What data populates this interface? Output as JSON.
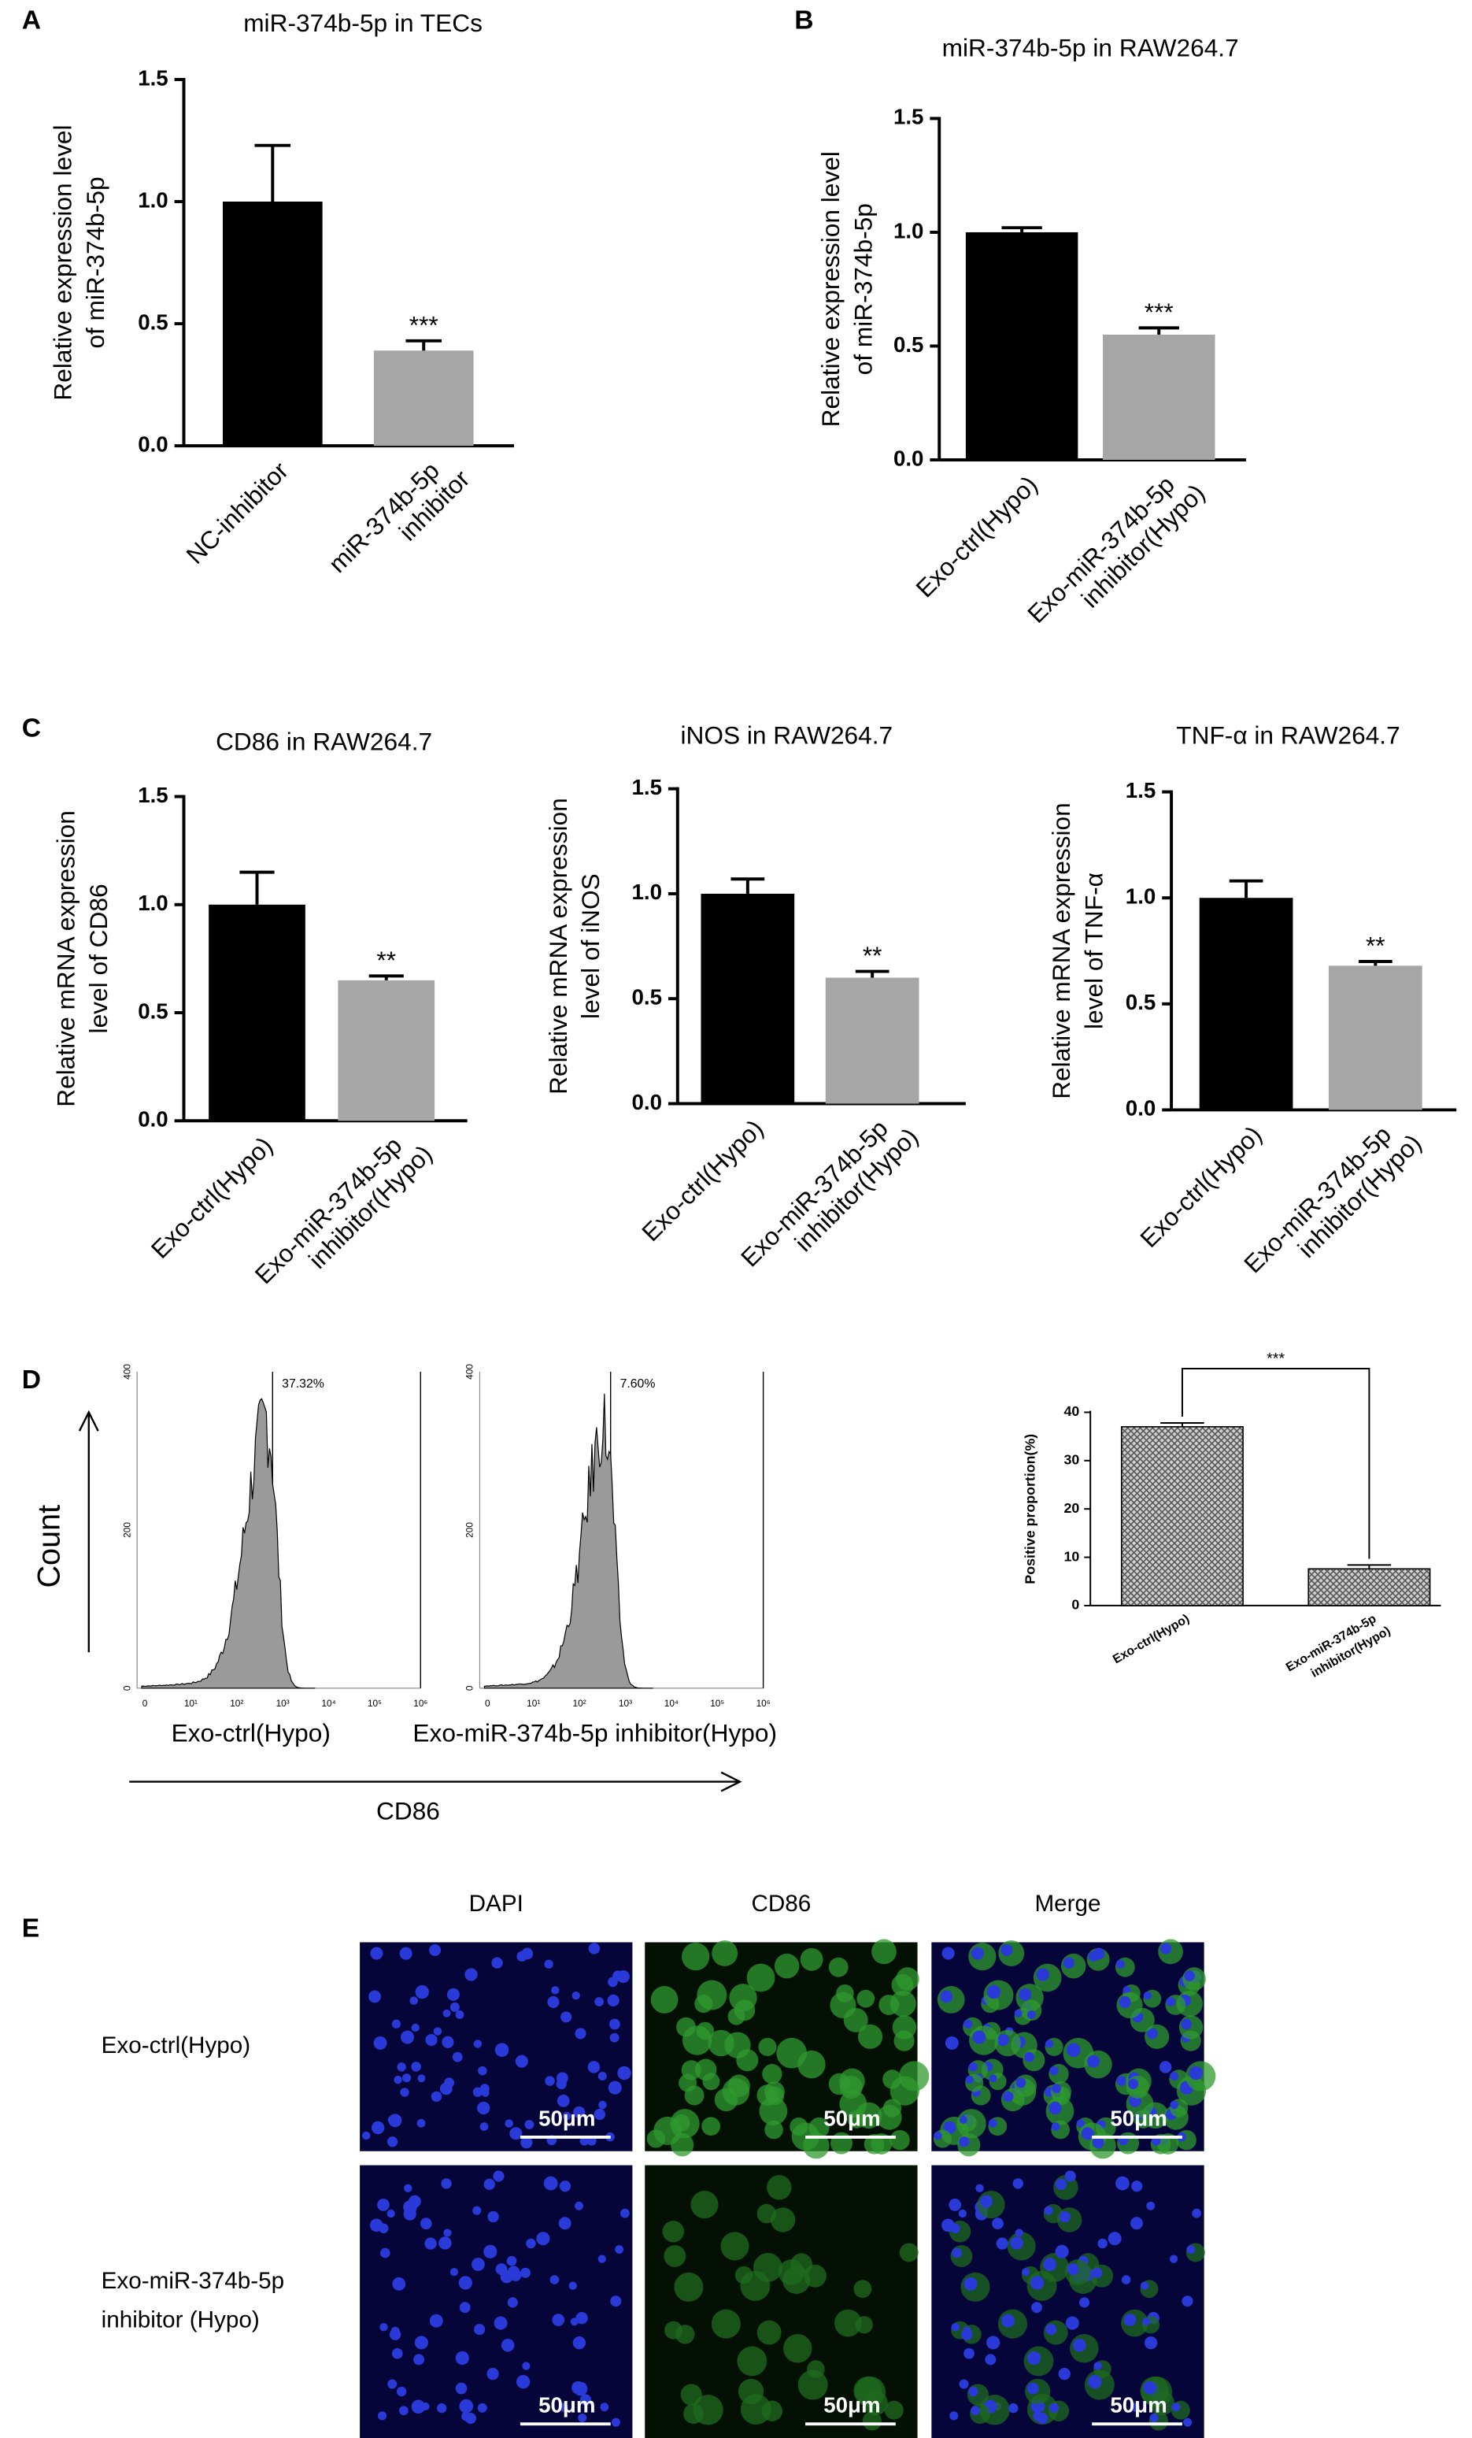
{
  "panels": [
    "A",
    "B",
    "C",
    "D",
    "E"
  ],
  "chart_data": [
    {
      "type": "bar",
      "title": "miR-374b-5p in TECs",
      "y_label": [
        "Relative expression level",
        "of miR-374b-5p"
      ],
      "categories": [
        [
          "NC-inhibitor"
        ],
        [
          "miR-374b-5p",
          "inhibitor"
        ]
      ],
      "values": [
        1.0,
        0.39
      ],
      "errors": [
        0.23,
        0.04
      ],
      "colors": [
        "#000000",
        "#a6a6a6"
      ],
      "annotation": "***",
      "ylim": [
        0,
        1.5
      ],
      "yticks": [
        {
          "value": 0,
          "label": "0.0"
        },
        {
          "value": 0.5,
          "label": "0.5"
        },
        {
          "value": 1,
          "label": "1.0"
        },
        {
          "value": 1.5,
          "label": "1.5"
        }
      ]
    },
    {
      "type": "bar",
      "title": "miR-374b-5p in RAW264.7",
      "y_label": [
        "Relative expression level",
        "of miR-374b-5p"
      ],
      "categories": [
        [
          "Exo-ctrl(Hypo)"
        ],
        [
          "Exo-miR-374b-5p",
          "inhibitor(Hypo)"
        ]
      ],
      "values": [
        1.0,
        0.55
      ],
      "errors": [
        0.02,
        0.03
      ],
      "colors": [
        "#000000",
        "#a6a6a6"
      ],
      "annotation": "***",
      "ylim": [
        0,
        1.5
      ],
      "yticks": [
        {
          "value": 0,
          "label": "0.0"
        },
        {
          "value": 0.5,
          "label": "0.5"
        },
        {
          "value": 1,
          "label": "1.0"
        },
        {
          "value": 1.5,
          "label": "1.5"
        }
      ]
    },
    {
      "type": "bar",
      "title": "CD86 in RAW264.7",
      "y_label": [
        "Relative mRNA expression",
        "level of CD86"
      ],
      "categories": [
        [
          "Exo-ctrl(Hypo)"
        ],
        [
          "Exo-miR-374b-5p",
          "inhibitor(Hypo)"
        ]
      ],
      "values": [
        1.0,
        0.65
      ],
      "errors": [
        0.15,
        0.02
      ],
      "colors": [
        "#000000",
        "#a6a6a6"
      ],
      "annotation": "**",
      "ylim": [
        0,
        1.5
      ],
      "yticks": [
        {
          "value": 0,
          "label": "0.0"
        },
        {
          "value": 0.5,
          "label": "0.5"
        },
        {
          "value": 1,
          "label": "1.0"
        },
        {
          "value": 1.5,
          "label": "1.5"
        }
      ]
    },
    {
      "type": "bar",
      "title": "iNOS in RAW264.7",
      "y_label": [
        "Relative mRNA expression",
        "level of iNOS"
      ],
      "categories": [
        [
          "Exo-ctrl(Hypo)"
        ],
        [
          "Exo-miR-374b-5p",
          "inhibitor(Hypo)"
        ]
      ],
      "values": [
        1.0,
        0.6
      ],
      "errors": [
        0.07,
        0.03
      ],
      "colors": [
        "#000000",
        "#a6a6a6"
      ],
      "annotation": "**",
      "ylim": [
        0,
        1.5
      ],
      "yticks": [
        {
          "value": 0,
          "label": "0.0"
        },
        {
          "value": 0.5,
          "label": "0.5"
        },
        {
          "value": 1,
          "label": "1.0"
        },
        {
          "value": 1.5,
          "label": "1.5"
        }
      ]
    },
    {
      "type": "bar",
      "title": "TNF-α in RAW264.7",
      "y_label": [
        "Relative mRNA expression",
        "level of TNF-α"
      ],
      "categories": [
        [
          "Exo-ctrl(Hypo)"
        ],
        [
          "Exo-miR-374b-5p",
          "inhibitor(Hypo)"
        ]
      ],
      "values": [
        1.0,
        0.68
      ],
      "errors": [
        0.08,
        0.02
      ],
      "colors": [
        "#000000",
        "#a6a6a6"
      ],
      "annotation": "**",
      "ylim": [
        0,
        1.5
      ],
      "yticks": [
        {
          "value": 0,
          "label": "0.0"
        },
        {
          "value": 0.5,
          "label": "0.5"
        },
        {
          "value": 1,
          "label": "1.0"
        },
        {
          "value": 1.5,
          "label": "1.5"
        }
      ]
    },
    {
      "type": "bar",
      "y_label": [
        "Positive proportion(%)"
      ],
      "categories": [
        [
          "Exo-ctrl(Hypo)"
        ],
        [
          "Exo-miR-374b-5p",
          "inhibitor(Hypo)"
        ]
      ],
      "values": [
        37,
        7.6
      ],
      "errors": [
        0.8,
        0.8
      ],
      "colors": [
        "#8c8c8c",
        "#8c8c8c"
      ],
      "fill": "crosshatch",
      "annotation": "***",
      "ylim": [
        0,
        40
      ],
      "yticks": [
        0,
        10,
        20,
        30,
        40
      ]
    }
  ],
  "flow": {
    "y_label": "Count",
    "x_label": "CD86",
    "samples": [
      "Exo-ctrl(Hypo)",
      "Exo-miR-374b-5p inhibitor(Hypo)"
    ],
    "gates": [
      "37.32%",
      "7.60%"
    ],
    "xticks": [
      "0",
      "10¹",
      "10²",
      "10³",
      "10⁴",
      "10⁵",
      "10⁶"
    ],
    "yticks": [
      "0",
      "200",
      "400"
    ]
  },
  "images": {
    "columns": [
      "DAPI",
      "CD86",
      "Merge"
    ],
    "rows": [
      [
        "Exo-ctrl(Hypo)"
      ],
      [
        "Exo-miR-374b-5p",
        "inhibitor (Hypo)"
      ]
    ],
    "scale_bar": "50μm"
  }
}
